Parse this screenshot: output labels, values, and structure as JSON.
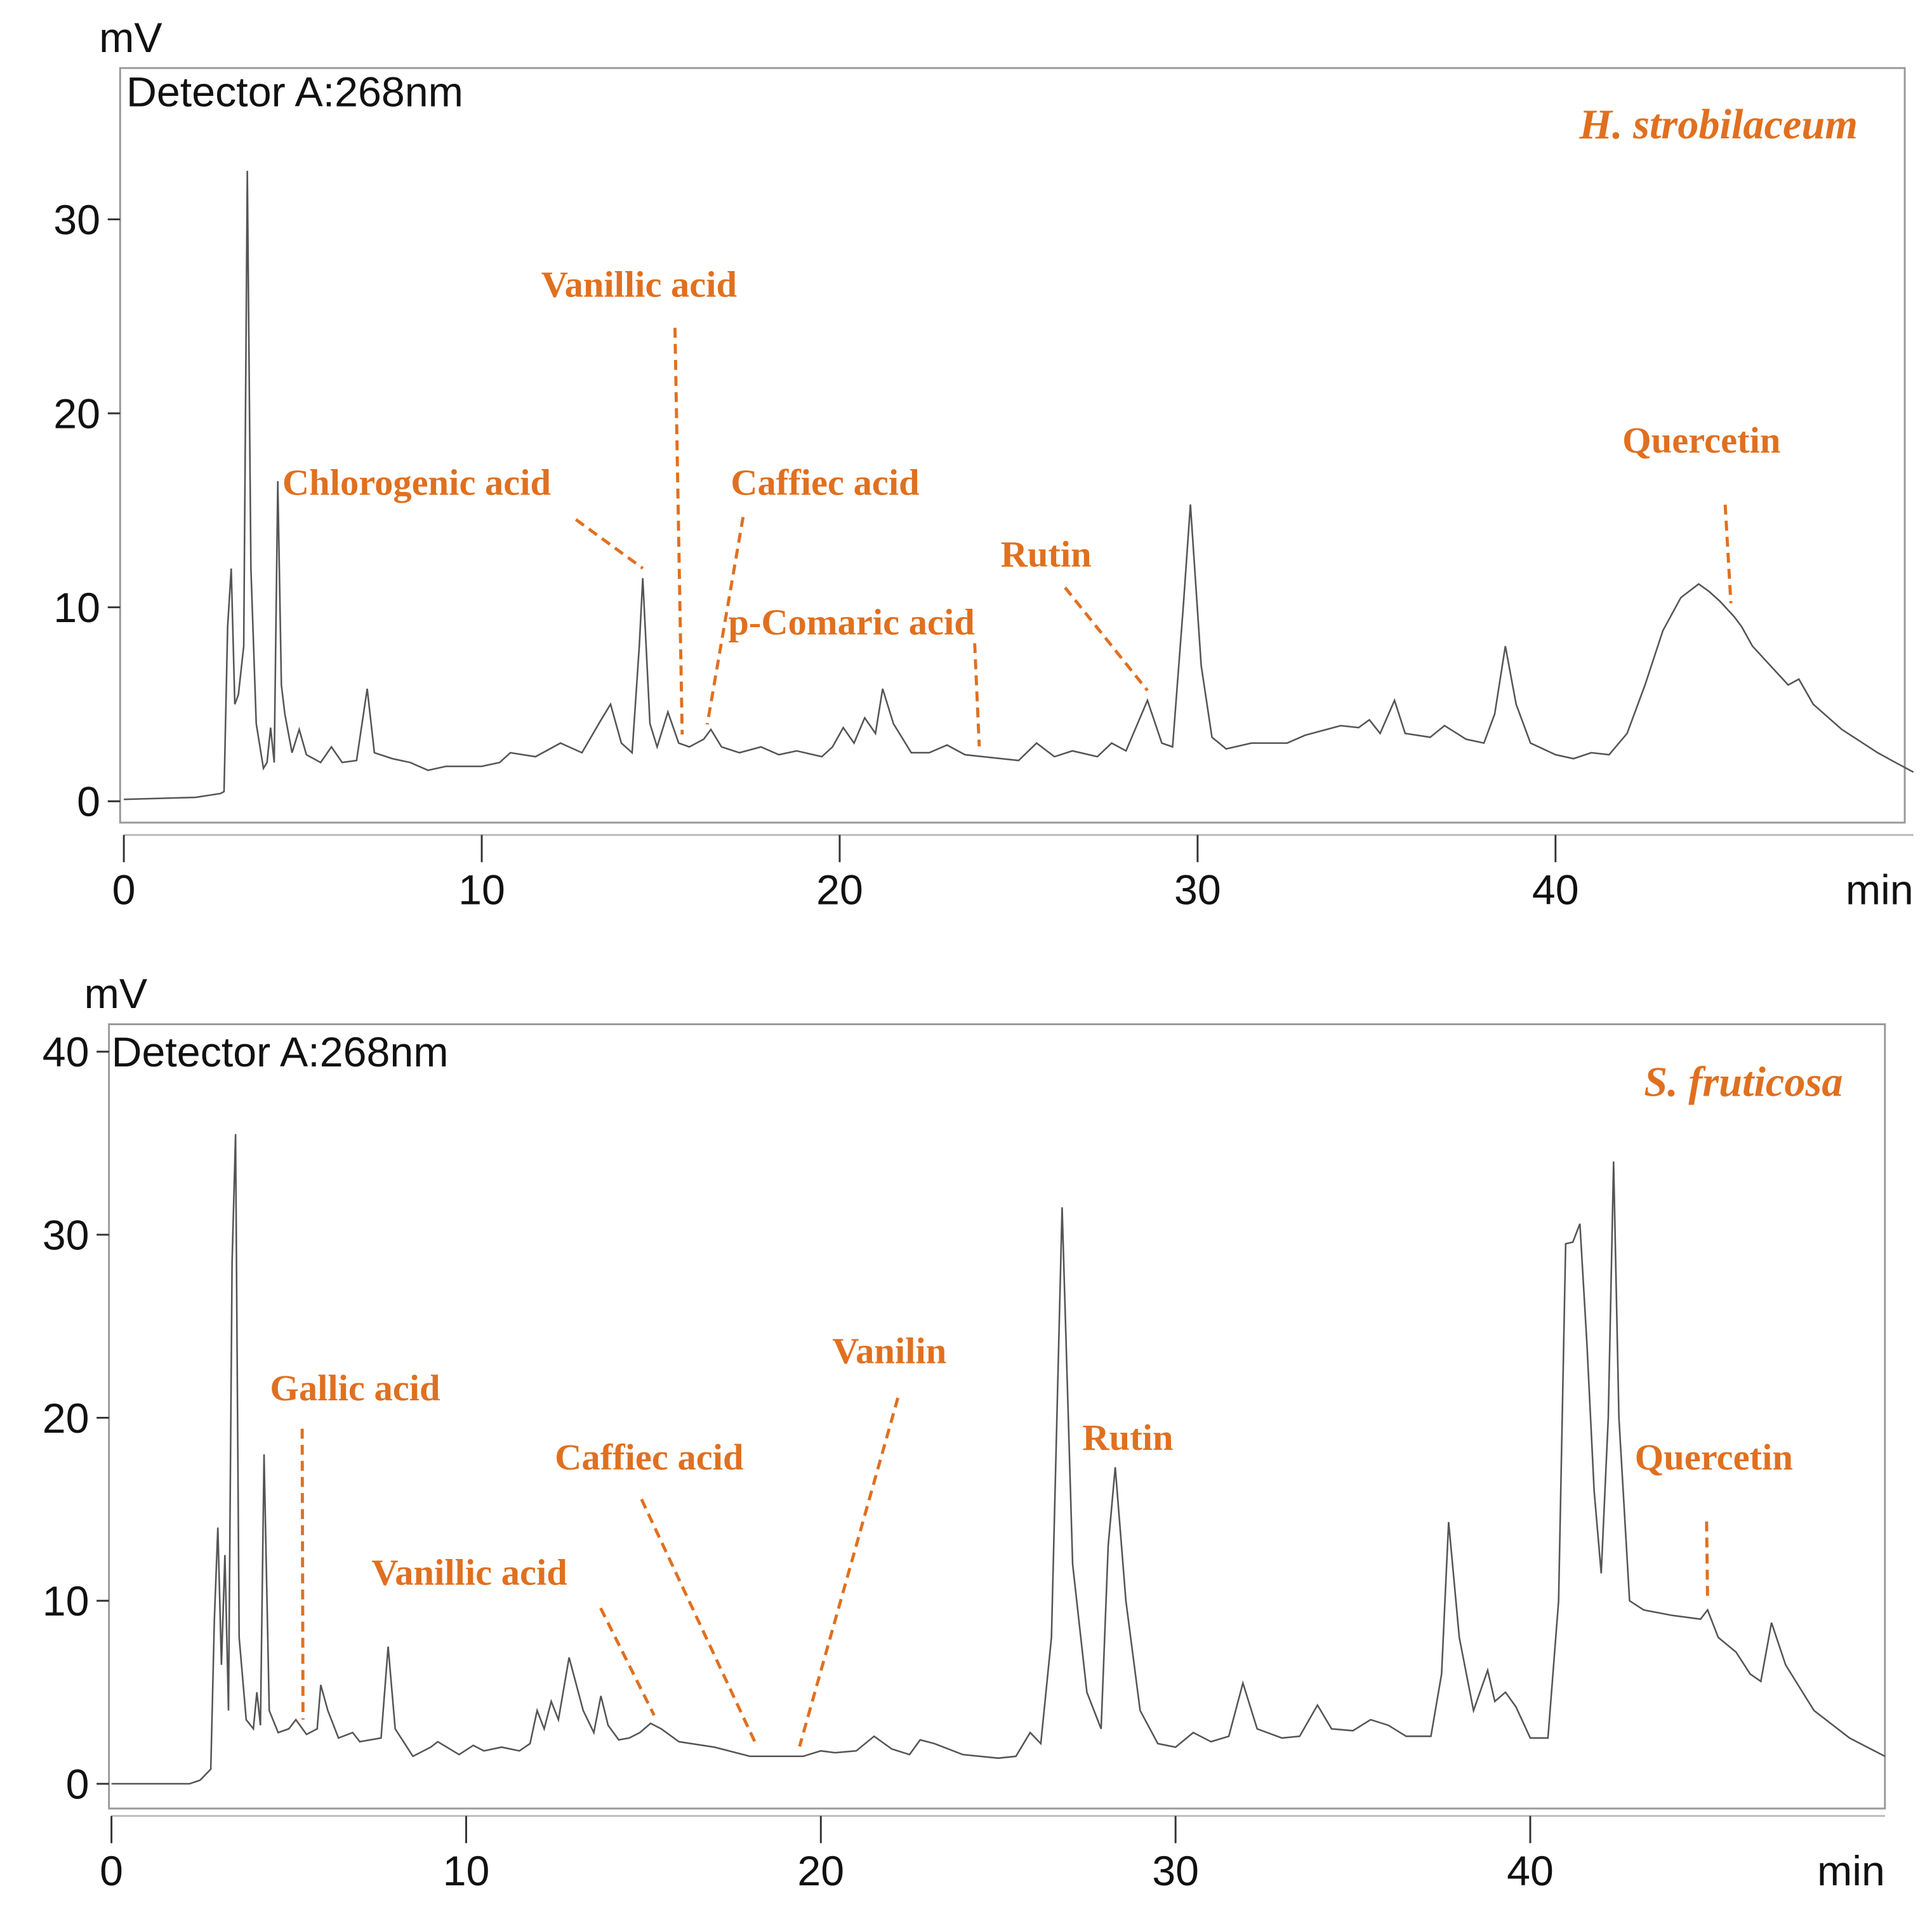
{
  "chart_data": [
    {
      "type": "line",
      "title": "H. strobilaceum",
      "subtitle": "Detector A:268nm",
      "ylabel": "mV",
      "xlabel": "min",
      "xlim": [
        0,
        50
      ],
      "ylim": [
        -1.1,
        37.8
      ],
      "xticks": [
        0,
        10,
        20,
        30,
        40
      ],
      "yticks": [
        0,
        10,
        20,
        30
      ],
      "color": "#555555",
      "annotation_color": "#e07020",
      "x": [
        0,
        2,
        2.7,
        2.8,
        2.9,
        3.0,
        3.1,
        3.2,
        3.35,
        3.45,
        3.55,
        3.7,
        3.9,
        4.0,
        4.1,
        4.2,
        4.3,
        4.4,
        4.5,
        4.7,
        4.9,
        5.1,
        5.5,
        5.8,
        6.1,
        6.5,
        6.8,
        7.0,
        7.5,
        8.0,
        8.5,
        9,
        10,
        10.5,
        10.8,
        11.5,
        12.2,
        12.8,
        13.3,
        13.6,
        13.9,
        14.2,
        14.4,
        14.5,
        14.7,
        14.9,
        15.2,
        15.5,
        15.8,
        16.2,
        16.4,
        16.7,
        17.2,
        17.8,
        18.3,
        18.8,
        19.5,
        19.8,
        20.1,
        20.4,
        20.7,
        21.0,
        21.2,
        21.5,
        22.0,
        22.5,
        23,
        23.5,
        24,
        25,
        25.5,
        26,
        26.5,
        27.2,
        27.6,
        28.0,
        28.6,
        29.0,
        29.3,
        29.6,
        29.8,
        30.1,
        30.4,
        30.8,
        31.5,
        32.5,
        33.0,
        34,
        34.5,
        34.8,
        35.1,
        35.5,
        35.8,
        36.5,
        36.9,
        37.5,
        38.0,
        38.3,
        38.6,
        38.9,
        39.3,
        40,
        40.5,
        41,
        41.5,
        42,
        42.5,
        43,
        43.5,
        44,
        44.3,
        44.6,
        45.0,
        45.2,
        45.5,
        46.0,
        46.5,
        46.8,
        47.2,
        48,
        49,
        49.5,
        50
      ],
      "values": [
        0.1,
        0.2,
        0.4,
        0.5,
        9,
        12,
        5,
        5.5,
        8,
        32.5,
        12,
        4,
        1.7,
        2,
        3.8,
        2,
        16.5,
        6,
        4.5,
        2.5,
        3.7,
        2.4,
        2,
        2.8,
        2,
        2.1,
        5.8,
        2.5,
        2.2,
        2,
        1.6,
        1.8,
        1.8,
        2.0,
        2.5,
        2.3,
        3.0,
        2.5,
        4.1,
        5,
        3,
        2.5,
        8,
        11.5,
        4,
        2.8,
        4.6,
        3.0,
        2.8,
        3.2,
        3.7,
        2.8,
        2.5,
        2.8,
        2.4,
        2.6,
        2.3,
        2.8,
        3.8,
        3.0,
        4.3,
        3.5,
        5.8,
        4.0,
        2.5,
        2.5,
        2.9,
        2.4,
        2.3,
        2.1,
        3.0,
        2.3,
        2.6,
        2.3,
        3.0,
        2.6,
        5.2,
        3.0,
        2.8,
        10,
        15.3,
        7,
        3.3,
        2.7,
        3.0,
        3.0,
        3.4,
        3.9,
        3.8,
        4.2,
        3.5,
        5.2,
        3.5,
        3.3,
        3.9,
        3.2,
        3.0,
        4.5,
        8.0,
        5.0,
        3.0,
        2.4,
        2.2,
        2.5,
        2.4,
        3.5,
        6,
        8.8,
        10.5,
        11.2,
        10.8,
        10.3,
        9.5,
        9.0,
        8.0,
        7.0,
        6.0,
        6.3,
        5.0,
        3.7,
        2.5,
        2.0,
        1.5
      ],
      "annotations": [
        {
          "text": "Chlorogenic acid",
          "x": 14.5
        },
        {
          "text": "Vanillic acid",
          "x": 15.6
        },
        {
          "text": "Caffiec acid",
          "x": 16.3
        },
        {
          "text": "p-Comaric acid",
          "x": 23.9
        },
        {
          "text": "Rutin",
          "x": 28.6
        },
        {
          "text": "Quercetin",
          "x": 44.9
        }
      ]
    },
    {
      "type": "line",
      "title": "S. fruticosa",
      "subtitle": "Detector A:268nm",
      "ylabel": "mV",
      "xlabel": "min",
      "xlim": [
        0,
        50
      ],
      "ylim": [
        -1.35,
        41.5
      ],
      "xticks": [
        0,
        10,
        20,
        30,
        40
      ],
      "yticks": [
        0,
        10,
        20,
        30,
        40
      ],
      "color": "#555555",
      "annotation_color": "#e07020",
      "x": [
        0,
        2.2,
        2.5,
        2.8,
        2.9,
        3.0,
        3.1,
        3.2,
        3.3,
        3.4,
        3.5,
        3.6,
        3.8,
        4.0,
        4.1,
        4.2,
        4.3,
        4.45,
        4.7,
        5.0,
        5.2,
        5.5,
        5.8,
        5.9,
        6.1,
        6.4,
        6.8,
        7.0,
        7.6,
        7.8,
        8.0,
        8.5,
        9.0,
        9.2,
        9.8,
        10.2,
        10.5,
        11,
        11.5,
        11.8,
        12,
        12.2,
        12.4,
        12.6,
        12.9,
        13.3,
        13.6,
        13.8,
        14.0,
        14.3,
        14.6,
        14.9,
        15.2,
        15.5,
        16,
        17,
        18,
        19,
        19.5,
        20,
        20.4,
        21,
        21.5,
        22,
        22.5,
        22.8,
        23.2,
        24,
        25,
        25.5,
        25.9,
        26.2,
        26.5,
        26.8,
        27.1,
        27.5,
        27.9,
        28.1,
        28.3,
        28.6,
        29.0,
        29.5,
        30,
        30.5,
        31,
        31.5,
        31.9,
        32.3,
        33,
        33.5,
        34.0,
        34.4,
        35,
        35.5,
        36,
        36.5,
        37.2,
        37.5,
        37.7,
        38.0,
        38.4,
        38.8,
        39.0,
        39.3,
        39.6,
        40,
        40.5,
        40.8,
        41.0,
        41.2,
        41.4,
        41.6,
        41.8,
        42.0,
        42.2,
        42.35,
        42.5,
        42.8,
        43.2,
        44,
        44.8,
        45.0,
        45.3,
        45.8,
        46.2,
        46.5,
        46.8,
        47.2,
        48,
        49,
        50
      ],
      "values": [
        0,
        0,
        0.2,
        0.8,
        9,
        14,
        6.5,
        12.5,
        4,
        28.5,
        35.5,
        8,
        3.5,
        3,
        5,
        3.2,
        18,
        4,
        2.8,
        3,
        3.5,
        2.7,
        3,
        5.4,
        4,
        2.5,
        2.8,
        2.3,
        2.5,
        7.5,
        3,
        1.5,
        2,
        2.3,
        1.6,
        2.1,
        1.8,
        2,
        1.8,
        2.2,
        4,
        3,
        4.5,
        3.5,
        6.9,
        4,
        2.8,
        4.8,
        3.2,
        2.4,
        2.5,
        2.8,
        3.3,
        3.0,
        2.3,
        2,
        1.5,
        1.5,
        1.5,
        1.8,
        1.7,
        1.8,
        2.6,
        1.9,
        1.6,
        2.4,
        2.2,
        1.6,
        1.4,
        1.5,
        2.8,
        2.2,
        8,
        31.5,
        12,
        5,
        3,
        13,
        17.3,
        10,
        4,
        2.2,
        2.0,
        2.8,
        2.3,
        2.6,
        5.5,
        3,
        2.5,
        2.6,
        4.3,
        3,
        2.9,
        3.5,
        3.2,
        2.6,
        2.6,
        6,
        14.3,
        8,
        4,
        6.2,
        4.5,
        5.0,
        4.2,
        2.5,
        2.5,
        10,
        29.5,
        29.6,
        30.6,
        24,
        16,
        11.5,
        20,
        34,
        20,
        10,
        9.5,
        9.2,
        9.0,
        9.5,
        8.0,
        7.2,
        6,
        5.6,
        8.8,
        6.5,
        4,
        2.5,
        1.5
      ],
      "annotations": [
        {
          "text": "Gallic acid",
          "x": 5.4
        },
        {
          "text": "Vanillic acid",
          "x": 15.3
        },
        {
          "text": "Caffiec acid",
          "x": 18.2
        },
        {
          "text": "Vanilin",
          "x": 19.4
        },
        {
          "text": "Rutin"
        },
        {
          "text": "Quercetin",
          "x": 45.0
        }
      ]
    }
  ]
}
